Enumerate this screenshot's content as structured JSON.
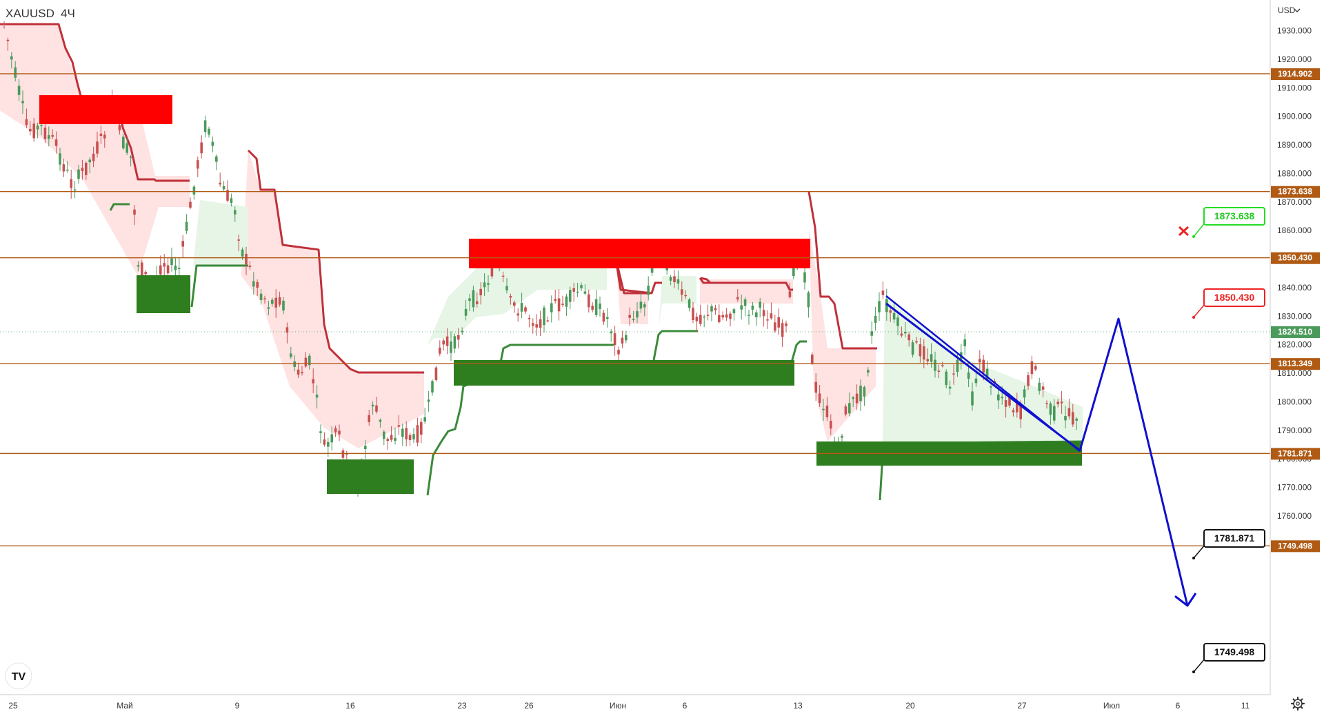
{
  "symbol": {
    "ticker": "XAUUSD",
    "timeframe": "4Ч"
  },
  "currency_label": "USD",
  "currency_chevron": "chevron-down-icon",
  "logo_text": "TV",
  "colors": {
    "hline": "#b05a14",
    "bear_band": "#c0303a",
    "bull_band": "#3a8a3a",
    "supply_zone": "#ff0000",
    "demand_zone": "#2e7d1e",
    "projection": "#1010d0",
    "candle_up": "#4a9a5a",
    "candle_down": "#c85050",
    "green_label": "#22dd22",
    "red_label": "#ee2222"
  },
  "price_axis": {
    "ticks": [
      "1930.000",
      "1920.000",
      "1910.000",
      "1900.000",
      "1890.000",
      "1880.000",
      "1870.000",
      "1860.000",
      "1850.000",
      "1840.000",
      "1830.000",
      "1820.000",
      "1810.000",
      "1800.000",
      "1790.000",
      "1780.000",
      "1770.000",
      "1760.000",
      "1750.000"
    ],
    "level_tags": [
      {
        "label": "1914.902",
        "color": "#b05a14"
      },
      {
        "label": "1873.638",
        "color": "#b05a14"
      },
      {
        "label": "1850.430",
        "color": "#b05a14"
      },
      {
        "label": "1824.510",
        "color": "#4a9a5a"
      },
      {
        "label": "1813.349",
        "color": "#b05a14"
      },
      {
        "label": "1781.871",
        "color": "#b05a14"
      },
      {
        "label": "1749.498",
        "color": "#b05a14"
      }
    ]
  },
  "time_axis": {
    "labels": [
      "25",
      "Май",
      "9",
      "16",
      "23",
      "26",
      "Июн",
      "6",
      "13",
      "20",
      "27",
      "Июл",
      "6",
      "11"
    ]
  },
  "callouts": [
    {
      "label": "1873.638",
      "style": "green"
    },
    {
      "label": "1850.430",
      "style": "red"
    },
    {
      "label": "1781.871",
      "style": "black"
    },
    {
      "label": "1749.498",
      "style": "black"
    }
  ],
  "marker_icon": "red-x-icon",
  "settings_icon": "gear-icon"
}
